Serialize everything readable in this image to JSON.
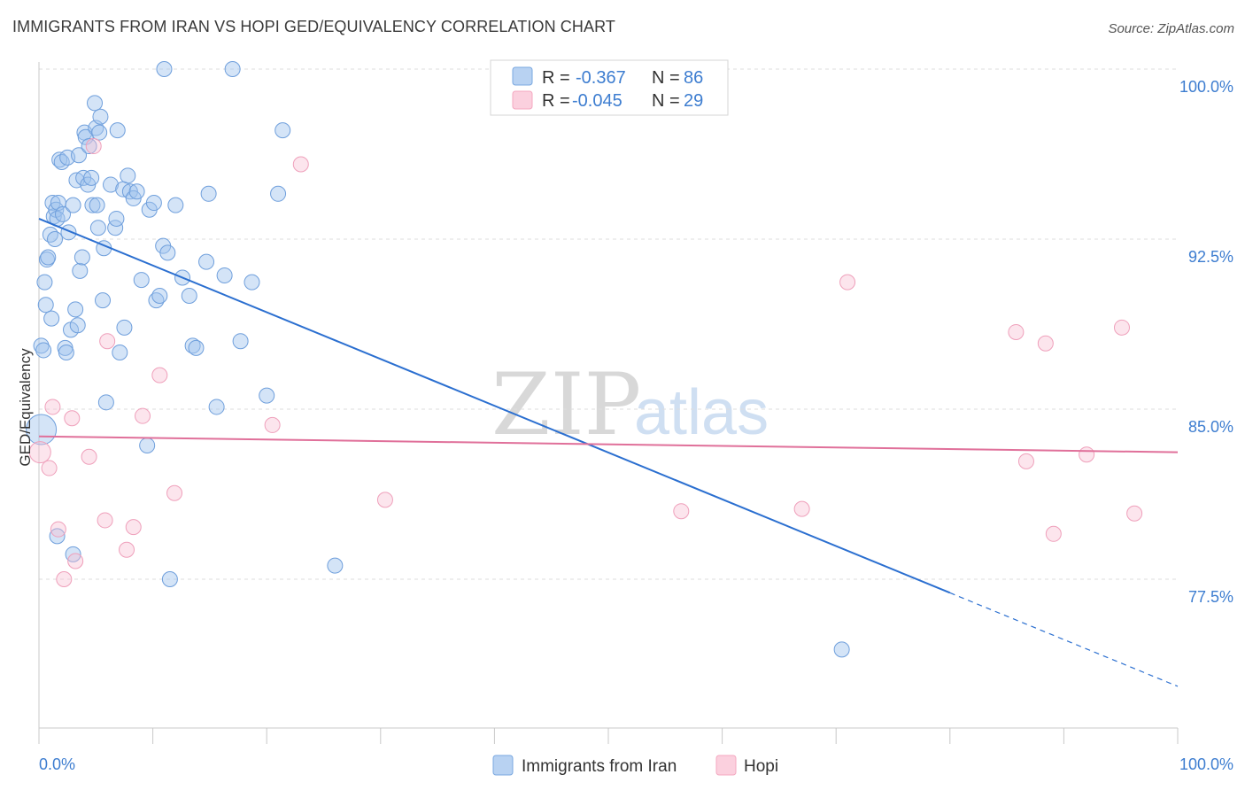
{
  "title": "IMMIGRANTS FROM IRAN VS HOPI GED/EQUIVALENCY CORRELATION CHART",
  "source": "Source: ZipAtlas.com",
  "watermark": {
    "zip": "ZIP",
    "atlas": "atlas"
  },
  "colors": {
    "blue": "#7aa8e0",
    "blue_line": "#2b6fd0",
    "pink": "#f4a8c0",
    "pink_line": "#e0709a",
    "tick_text": "#3d7dd0"
  },
  "legend": {
    "r_label": "R =",
    "n_label": "N =",
    "series": [
      {
        "r": "-0.367",
        "n": "86"
      },
      {
        "r": "-0.045",
        "n": "29"
      }
    ]
  },
  "chart_data": {
    "type": "scatter",
    "title": "IMMIGRANTS FROM IRAN VS HOPI GED/EQUIVALENCY CORRELATION CHART",
    "xlabel": "",
    "ylabel": "GED/Equivalency",
    "xlim": [
      0,
      100
    ],
    "ylim": [
      72.0,
      101.0
    ],
    "x_tick_labels": [
      "0.0%",
      "100.0%"
    ],
    "y_ticks": [
      77.5,
      85.0,
      92.5,
      100.0
    ],
    "y_tick_labels": [
      "77.5%",
      "85.0%",
      "92.5%",
      "100.0%"
    ],
    "grid": true,
    "series": [
      {
        "name": "Immigrants from Iran",
        "color": "#7aa8e0",
        "trend": {
          "x0": 0.0,
          "y0": 93.4,
          "x1": 80.0,
          "y1": 76.9,
          "dashed_to": 100.0
        },
        "points": [
          [
            0.2,
            84.1
          ],
          [
            0.2,
            87.8
          ],
          [
            0.4,
            87.6
          ],
          [
            0.5,
            90.6
          ],
          [
            0.6,
            89.6
          ],
          [
            0.7,
            91.6
          ],
          [
            0.8,
            91.7
          ],
          [
            1.0,
            92.7
          ],
          [
            1.1,
            89.0
          ],
          [
            1.2,
            94.1
          ],
          [
            1.3,
            93.5
          ],
          [
            1.4,
            92.5
          ],
          [
            1.5,
            93.8
          ],
          [
            1.6,
            93.4
          ],
          [
            1.7,
            94.1
          ],
          [
            1.8,
            96.0
          ],
          [
            2.0,
            95.9
          ],
          [
            2.1,
            93.6
          ],
          [
            2.3,
            87.7
          ],
          [
            2.4,
            87.5
          ],
          [
            2.5,
            96.1
          ],
          [
            2.6,
            92.8
          ],
          [
            2.8,
            88.5
          ],
          [
            3.0,
            94.0
          ],
          [
            3.2,
            89.4
          ],
          [
            3.3,
            95.1
          ],
          [
            3.4,
            88.7
          ],
          [
            3.5,
            96.2
          ],
          [
            3.6,
            91.1
          ],
          [
            3.8,
            91.7
          ],
          [
            3.9,
            95.2
          ],
          [
            4.0,
            97.2
          ],
          [
            4.1,
            97.0
          ],
          [
            4.3,
            94.9
          ],
          [
            4.4,
            96.6
          ],
          [
            4.6,
            95.2
          ],
          [
            4.7,
            94.0
          ],
          [
            4.9,
            98.5
          ],
          [
            5.0,
            97.4
          ],
          [
            5.1,
            94.0
          ],
          [
            5.2,
            93.0
          ],
          [
            5.3,
            97.2
          ],
          [
            5.4,
            97.9
          ],
          [
            5.6,
            89.8
          ],
          [
            5.7,
            92.1
          ],
          [
            6.3,
            94.9
          ],
          [
            6.7,
            93.0
          ],
          [
            6.8,
            93.4
          ],
          [
            6.9,
            97.3
          ],
          [
            7.4,
            94.7
          ],
          [
            7.5,
            88.6
          ],
          [
            7.8,
            95.3
          ],
          [
            8.0,
            94.6
          ],
          [
            8.3,
            94.3
          ],
          [
            8.6,
            94.6
          ],
          [
            9.5,
            83.4
          ],
          [
            9.7,
            93.8
          ],
          [
            10.1,
            94.1
          ],
          [
            10.3,
            89.8
          ],
          [
            10.6,
            90.0
          ],
          [
            10.9,
            92.2
          ],
          [
            11.3,
            91.9
          ],
          [
            11.5,
            77.5
          ],
          [
            12.0,
            94.0
          ],
          [
            12.6,
            90.8
          ],
          [
            13.2,
            90.0
          ],
          [
            13.5,
            87.8
          ],
          [
            13.8,
            87.7
          ],
          [
            14.7,
            91.5
          ],
          [
            14.9,
            94.5
          ],
          [
            15.6,
            85.1
          ],
          [
            16.3,
            90.9
          ],
          [
            17.7,
            88.0
          ],
          [
            18.7,
            90.6
          ],
          [
            20.0,
            85.6
          ],
          [
            21.0,
            94.5
          ],
          [
            21.4,
            97.3
          ],
          [
            26.0,
            78.1
          ],
          [
            5.9,
            85.3
          ],
          [
            9.0,
            90.7
          ],
          [
            11.0,
            100.0
          ],
          [
            17.0,
            100.0
          ],
          [
            70.5,
            74.4
          ],
          [
            1.6,
            79.4
          ],
          [
            3.0,
            78.6
          ],
          [
            7.1,
            87.5
          ]
        ]
      },
      {
        "name": "Hopi",
        "color": "#f4a8c0",
        "trend": {
          "x0": 0.0,
          "y0": 83.8,
          "x1": 100.0,
          "y1": 83.1
        },
        "points": [
          [
            0.1,
            83.1
          ],
          [
            0.9,
            82.4
          ],
          [
            1.2,
            85.1
          ],
          [
            1.7,
            79.7
          ],
          [
            2.2,
            77.5
          ],
          [
            2.9,
            84.6
          ],
          [
            3.2,
            78.3
          ],
          [
            4.4,
            82.9
          ],
          [
            4.8,
            96.6
          ],
          [
            5.8,
            80.1
          ],
          [
            6.0,
            88.0
          ],
          [
            7.7,
            78.8
          ],
          [
            8.3,
            79.8
          ],
          [
            9.1,
            84.7
          ],
          [
            10.6,
            86.5
          ],
          [
            11.9,
            81.3
          ],
          [
            20.5,
            84.3
          ],
          [
            23.0,
            95.8
          ],
          [
            30.4,
            81.0
          ],
          [
            56.4,
            80.5
          ],
          [
            67.0,
            80.6
          ],
          [
            71.0,
            90.6
          ],
          [
            85.8,
            88.4
          ],
          [
            86.7,
            82.7
          ],
          [
            88.4,
            87.9
          ],
          [
            89.1,
            79.5
          ],
          [
            92.0,
            83.0
          ],
          [
            95.1,
            88.6
          ],
          [
            96.2,
            80.4
          ]
        ]
      }
    ]
  },
  "bottom_legend": [
    "Immigrants from Iran",
    "Hopi"
  ]
}
